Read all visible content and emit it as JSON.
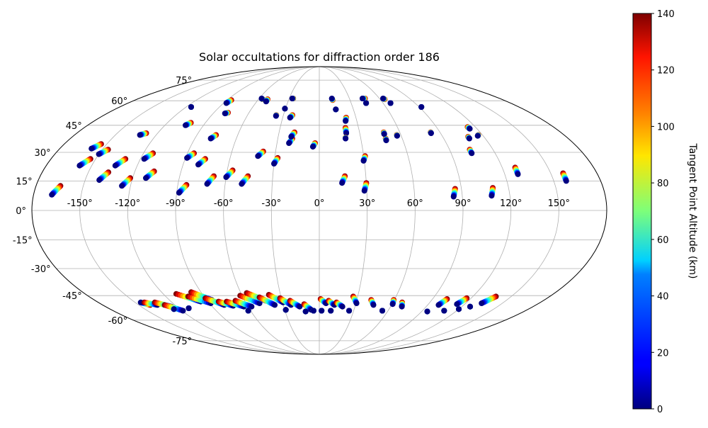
{
  "chart_data": {
    "type": "scatter",
    "projection": "mollweide",
    "title": "Solar occultations for diffraction order 186",
    "x_ticks": [
      -150,
      -120,
      -90,
      -60,
      -30,
      0,
      30,
      60,
      90,
      120,
      150
    ],
    "x_tick_labels": [
      "-150°",
      "-120°",
      "-90°",
      "-60°",
      "-30°",
      "0°",
      "30°",
      "60°",
      "90°",
      "120°",
      "150°"
    ],
    "y_ticks": [
      -75,
      -60,
      -45,
      -30,
      -15,
      0,
      15,
      30,
      45,
      60,
      75
    ],
    "y_tick_labels": [
      "-75°",
      "-60°",
      "-45°",
      "-30°",
      "-15°",
      "0°",
      "15°",
      "30°",
      "45°",
      "60°",
      "75°"
    ],
    "xlim": [
      -180,
      180
    ],
    "ylim": [
      -90,
      90
    ],
    "grid": true,
    "colorbar": {
      "label": "Tangent Point Altitude (km)",
      "min": 0,
      "max": 140,
      "ticks": [
        0,
        20,
        40,
        60,
        80,
        100,
        120,
        140
      ],
      "tick_labels": [
        "0",
        "20",
        "40",
        "60",
        "80",
        "100",
        "120",
        "140"
      ],
      "colormap": "jet"
    },
    "occultations": [
      {
        "lon_start": -168.5,
        "lat_start": 8,
        "lon_end": -164.5,
        "lat_end": 12.5
      },
      {
        "lon_start": -158,
        "lat_start": 23,
        "lon_end": -153.5,
        "lat_end": 26.5
      },
      {
        "lon_start": -158,
        "lat_start": 32,
        "lon_end": -154,
        "lat_end": 34.5
      },
      {
        "lon_start": -150,
        "lat_start": 29,
        "lon_end": -146,
        "lat_end": 31.5
      },
      {
        "lon_start": -141,
        "lat_start": 15.5,
        "lon_end": -137,
        "lat_end": 19.5
      },
      {
        "lon_start": -134.5,
        "lat_start": 23,
        "lon_end": -130,
        "lat_end": 26.5
      },
      {
        "lon_start": -132,
        "lat_start": 39.5,
        "lon_end": -128.5,
        "lat_end": 40.5
      },
      {
        "lon_start": -125.5,
        "lat_start": 12.5,
        "lon_end": -121.5,
        "lat_end": 16.5
      },
      {
        "lon_start": -117.5,
        "lat_start": 26.5,
        "lon_end": -113.5,
        "lat_end": 29.5
      },
      {
        "lon_start": -115.5,
        "lat_start": 56,
        "lon_end": -115.5,
        "lat_end": 56
      },
      {
        "lon_start": -111.5,
        "lat_start": 16.5,
        "lon_end": -107.5,
        "lat_end": 20
      },
      {
        "lon_start": -104,
        "lat_start": 45,
        "lon_end": -101.5,
        "lat_end": 46.5
      },
      {
        "lon_start": -89,
        "lat_start": 27,
        "lon_end": -85.5,
        "lat_end": 29.5
      },
      {
        "lon_start": -88.5,
        "lat_start": 9,
        "lon_end": -84.5,
        "lat_end": 13
      },
      {
        "lon_start": -87.5,
        "lat_start": 58.5,
        "lon_end": -86,
        "lat_end": 60.5
      },
      {
        "lon_start": -80,
        "lat_start": 23.5,
        "lon_end": -76.5,
        "lat_end": 26.5
      },
      {
        "lon_start": -80,
        "lat_start": 52,
        "lon_end": -78,
        "lat_end": 52.5
      },
      {
        "lon_start": -78.5,
        "lat_start": 37.5,
        "lon_end": -76,
        "lat_end": 39.5
      },
      {
        "lon_start": -71.5,
        "lat_start": 13.5,
        "lon_end": -68,
        "lat_end": 17.5
      },
      {
        "lon_start": -60,
        "lat_start": 17,
        "lon_end": -56.5,
        "lat_end": 20.5
      },
      {
        "lon_start": -57.5,
        "lat_start": 61.5,
        "lon_end": -56,
        "lat_end": 61
      },
      {
        "lon_start": -51,
        "lat_start": 59.5,
        "lon_end": -51,
        "lat_end": 61
      },
      {
        "lon_start": -49.5,
        "lat_start": 13.5,
        "lon_end": -46,
        "lat_end": 17.5
      },
      {
        "lon_start": -41.5,
        "lat_start": 28,
        "lon_end": -38.5,
        "lat_end": 30.5
      },
      {
        "lon_start": -36,
        "lat_start": 50.5,
        "lon_end": -36,
        "lat_end": 51
      },
      {
        "lon_start": -30.5,
        "lat_start": 55,
        "lon_end": -30.5,
        "lat_end": 55
      },
      {
        "lon_start": -30,
        "lat_start": 24,
        "lon_end": -28,
        "lat_end": 27
      },
      {
        "lon_start": -27,
        "lat_start": 61.5,
        "lon_end": -26,
        "lat_end": 61.5
      },
      {
        "lon_start": -24,
        "lat_start": 49.5,
        "lon_end": -22.5,
        "lat_end": 51
      },
      {
        "lon_start": -21.5,
        "lat_start": 35,
        "lon_end": -19.5,
        "lat_end": 37.5
      },
      {
        "lon_start": -20.5,
        "lat_start": 38.5,
        "lon_end": -18.5,
        "lat_end": 41
      },
      {
        "lon_start": -4.5,
        "lat_start": 33,
        "lon_end": -3,
        "lat_end": 35
      },
      {
        "lon_start": 12.5,
        "lat_start": 61.5,
        "lon_end": 13,
        "lat_end": 60.5
      },
      {
        "lon_start": 14.5,
        "lat_start": 54.5,
        "lon_end": 14.5,
        "lat_end": 54.5
      },
      {
        "lon_start": 14.5,
        "lat_start": 14,
        "lon_end": 16.5,
        "lat_end": 17.5
      },
      {
        "lon_start": 21,
        "lat_start": 47.5,
        "lon_end": 22,
        "lat_end": 49.5
      },
      {
        "lon_start": 20,
        "lat_start": 40.5,
        "lon_end": 20,
        "lat_end": 43.5
      },
      {
        "lon_start": 19,
        "lat_start": 37.5,
        "lon_end": 19,
        "lat_end": 38
      },
      {
        "lon_start": 29.5,
        "lat_start": 25.5,
        "lon_end": 31,
        "lat_end": 28
      },
      {
        "lon_start": 28.5,
        "lat_start": 10,
        "lon_end": 30,
        "lat_end": 14
      },
      {
        "lon_start": 43,
        "lat_start": 61.5,
        "lon_end": 45.5,
        "lat_end": 61.5
      },
      {
        "lon_start": 44,
        "lat_start": 58.5,
        "lon_end": 44,
        "lat_end": 58.5
      },
      {
        "lon_start": 48,
        "lat_start": 36.5,
        "lon_end": 48,
        "lat_end": 37.5
      },
      {
        "lon_start": 48,
        "lat_start": 40,
        "lon_end": 48,
        "lat_end": 41
      },
      {
        "lon_start": 57,
        "lat_start": 39,
        "lon_end": 57,
        "lat_end": 39.5
      },
      {
        "lon_start": 63.5,
        "lat_start": 61.5,
        "lon_end": 64.5,
        "lat_end": 61
      },
      {
        "lon_start": 67,
        "lat_start": 58.5,
        "lon_end": 67,
        "lat_end": 58.5
      },
      {
        "lon_start": 83,
        "lat_start": 40.5,
        "lon_end": 83,
        "lat_end": 41
      },
      {
        "lon_start": 84.5,
        "lat_start": 7,
        "lon_end": 86,
        "lat_end": 11
      },
      {
        "lon_start": 92,
        "lat_start": 56,
        "lon_end": 92,
        "lat_end": 56
      },
      {
        "lon_start": 104,
        "lat_start": 29.5,
        "lon_end": 104,
        "lat_end": 31.5
      },
      {
        "lon_start": 108.5,
        "lat_start": 7.5,
        "lon_end": 110,
        "lat_end": 11.5
      },
      {
        "lon_start": 108.5,
        "lat_start": 37.5,
        "lon_end": 108.5,
        "lat_end": 38.5
      },
      {
        "lon_start": 114.5,
        "lat_start": 43,
        "lon_end": 114,
        "lat_end": 44
      },
      {
        "lon_start": 116,
        "lat_start": 39,
        "lon_end": 117,
        "lat_end": 39.5
      },
      {
        "lon_start": 128.5,
        "lat_start": 18.5,
        "lon_end": 128.5,
        "lat_end": 22
      },
      {
        "lon_start": 158,
        "lat_start": 15,
        "lon_end": 158,
        "lat_end": 19
      },
      {
        "lon_start": -145.5,
        "lat_start": -49,
        "lon_end": -140.5,
        "lat_end": -50.5
      },
      {
        "lon_start": -134.5,
        "lat_start": -50.5,
        "lon_end": -142.5,
        "lat_end": -49
      },
      {
        "lon_start": -124.5,
        "lat_start": -51.5,
        "lon_end": -134,
        "lat_end": -49
      },
      {
        "lon_start": -119,
        "lat_start": -54,
        "lon_end": -128.5,
        "lat_end": -50.5
      },
      {
        "lon_start": -96,
        "lat_start": -48.5,
        "lon_end": -110,
        "lat_end": -44
      },
      {
        "lon_start": -89,
        "lat_start": -49.5,
        "lon_end": -102.5,
        "lat_end": -45.5
      },
      {
        "lon_start": -86,
        "lat_start": -47.5,
        "lon_end": -97.5,
        "lat_end": -43
      },
      {
        "lon_start": -79,
        "lat_start": -50.5,
        "lon_end": -90,
        "lat_end": -46.5
      },
      {
        "lon_start": -72,
        "lat_start": -51,
        "lon_end": -81.5,
        "lat_end": -48.5
      },
      {
        "lon_start": -63.5,
        "lat_start": -51.5,
        "lon_end": -75,
        "lat_end": -48.5
      },
      {
        "lon_start": -57,
        "lat_start": -51.5,
        "lon_end": -67.5,
        "lat_end": -48
      },
      {
        "lon_start": -49,
        "lat_start": -49.5,
        "lon_end": -61.5,
        "lat_end": -45
      },
      {
        "lon_start": -43,
        "lat_start": -48,
        "lon_end": -55.5,
        "lat_end": -43.5
      },
      {
        "lon_start": -37,
        "lat_start": -50.5,
        "lon_end": -47,
        "lat_end": -46
      },
      {
        "lon_start": -29.5,
        "lat_start": -49,
        "lon_end": -39,
        "lat_end": -44.5
      },
      {
        "lon_start": -23.5,
        "lat_start": -50.5,
        "lon_end": -31,
        "lat_end": -46.5
      },
      {
        "lon_start": -16.5,
        "lat_start": -51.5,
        "lon_end": -23.5,
        "lat_end": -48
      },
      {
        "lon_start": -7,
        "lat_start": -53.5,
        "lon_end": -12.5,
        "lat_end": -50
      },
      {
        "lon_start": 5.5,
        "lat_start": -49.5,
        "lon_end": 1,
        "lat_end": -47
      },
      {
        "lon_start": 12.5,
        "lat_start": -50.5,
        "lon_end": 7.5,
        "lat_end": -48
      },
      {
        "lon_start": 19.5,
        "lat_start": -51.5,
        "lon_end": 14,
        "lat_end": -49
      },
      {
        "lon_start": 30.5,
        "lat_start": -49.5,
        "lon_end": 26.5,
        "lat_end": -45.5
      },
      {
        "lon_start": 45,
        "lat_start": -50.5,
        "lon_end": 41.5,
        "lat_end": -47.5
      },
      {
        "lon_start": 60.5,
        "lat_start": -50,
        "lon_end": 59.5,
        "lat_end": -47.5
      },
      {
        "lon_start": 69.5,
        "lat_start": -51.5,
        "lon_end": 67.5,
        "lat_end": -49
      },
      {
        "lon_start": 99,
        "lat_start": -50.5,
        "lon_end": 101.5,
        "lat_end": -47
      },
      {
        "lon_start": 113.5,
        "lat_start": -50,
        "lon_end": 116.5,
        "lat_end": -46.5
      },
      {
        "lon_start": 133,
        "lat_start": -49.5,
        "lon_end": 138,
        "lat_end": -45.5
      },
      {
        "lon_start": -125,
        "lat_start": -53,
        "lon_end": -125,
        "lat_end": -53
      },
      {
        "lon_start": -111.5,
        "lat_start": -52.5,
        "lon_end": -111.5,
        "lat_end": -52.5
      },
      {
        "lon_start": -62,
        "lat_start": -54,
        "lon_end": -62,
        "lat_end": -54
      },
      {
        "lon_start": -29,
        "lat_start": -53.5,
        "lon_end": -29,
        "lat_end": -53.5
      },
      {
        "lon_start": -12,
        "lat_start": -54.5,
        "lon_end": -12,
        "lat_end": -54.5
      },
      {
        "lon_start": -5,
        "lat_start": -54,
        "lon_end": -5,
        "lat_end": -54
      },
      {
        "lon_start": 2,
        "lat_start": -54,
        "lon_end": 2,
        "lat_end": -54
      },
      {
        "lon_start": 10,
        "lat_start": -54,
        "lon_end": 10,
        "lat_end": -54
      },
      {
        "lon_start": 26,
        "lat_start": -54,
        "lon_end": 26,
        "lat_end": -54
      },
      {
        "lon_start": 55,
        "lat_start": -54,
        "lon_end": 55,
        "lat_end": -54
      },
      {
        "lon_start": 95,
        "lat_start": -54.5,
        "lon_end": 95,
        "lat_end": -54.5
      },
      {
        "lon_start": 109,
        "lat_start": -54,
        "lon_end": 109,
        "lat_end": -54
      },
      {
        "lon_start": 120,
        "lat_start": -53,
        "lon_end": 120,
        "lat_end": -53
      },
      {
        "lon_start": 127,
        "lat_start": -51.5,
        "lon_end": 127,
        "lat_end": -51.5
      }
    ]
  }
}
